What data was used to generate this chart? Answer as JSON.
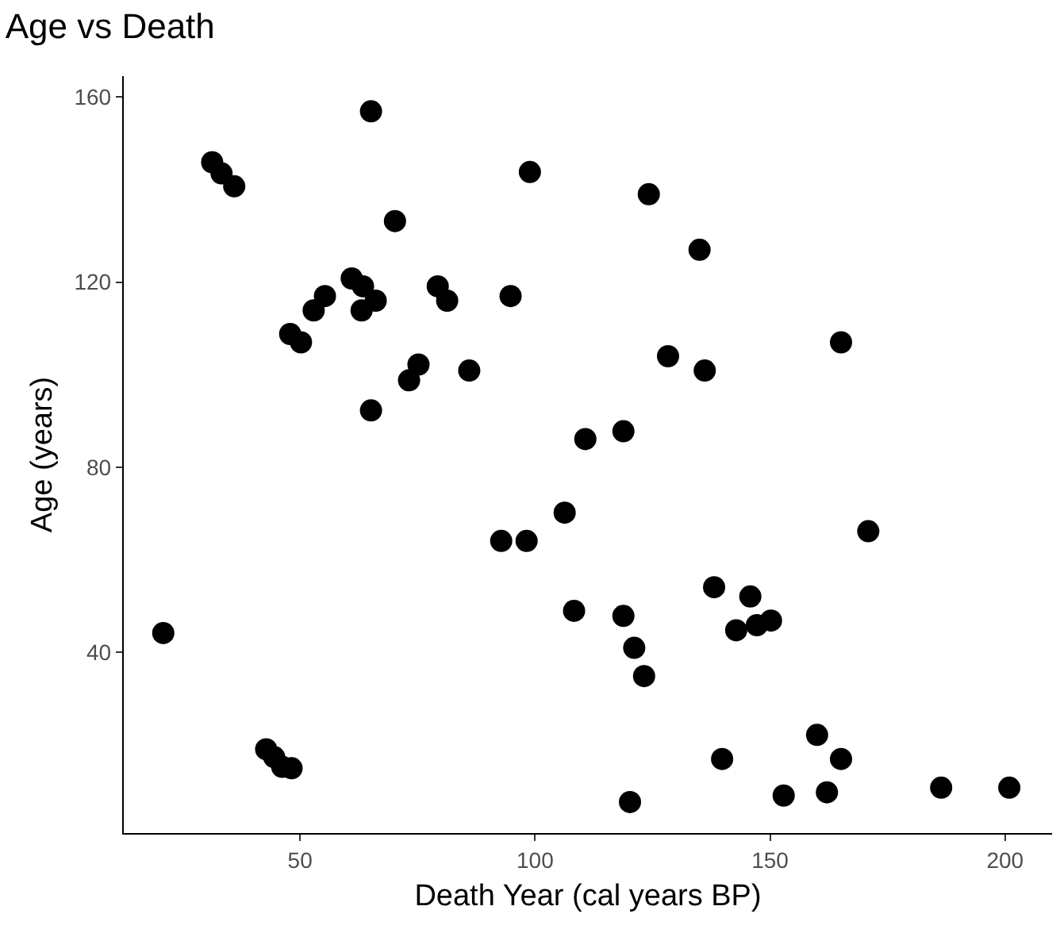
{
  "chart_data": {
    "type": "scatter",
    "title": "Age vs Death",
    "xlabel": "Death Year (cal years BP)",
    "ylabel": "Age (years)",
    "x": [
      20.9,
      31.3,
      33.3,
      36.0,
      65.1,
      98.9,
      70.2,
      61.0,
      63.4,
      66.1,
      63.1,
      55.3,
      52.9,
      47.9,
      50.2,
      79.3,
      81.3,
      94.8,
      75.2,
      73.2,
      86.0,
      65.1,
      124.2,
      135.0,
      165.1,
      128.3,
      136.1,
      110.7,
      118.8,
      42.8,
      44.5,
      46.2,
      48.2,
      92.8,
      98.2,
      106.3,
      108.3,
      170.9,
      138.1,
      145.8,
      142.8,
      147.2,
      150.2,
      118.8,
      121.1,
      123.2,
      160.0,
      165.1,
      139.8,
      162.1,
      152.9,
      120.2,
      186.4,
      200.9
    ],
    "values": [
      44.2,
      145.9,
      143.5,
      140.7,
      156.9,
      143.8,
      133.2,
      120.8,
      119.1,
      116.0,
      113.9,
      117.0,
      113.9,
      108.8,
      107.0,
      119.1,
      116.0,
      117.0,
      102.2,
      98.8,
      100.9,
      92.3,
      139.0,
      127.0,
      107.0,
      104.0,
      100.9,
      86.1,
      87.8,
      19.1,
      17.4,
      15.3,
      15.0,
      64.1,
      64.1,
      70.2,
      49.0,
      66.2,
      54.1,
      52.1,
      44.8,
      45.9,
      46.9,
      47.9,
      41.0,
      34.9,
      22.2,
      17.0,
      17.0,
      9.8,
      9.1,
      7.7,
      10.8,
      10.8
    ],
    "color": "#000000",
    "marker": "circle",
    "xlim": [
      12.5,
      210
    ],
    "xticks": [
      50,
      100,
      150,
      200
    ],
    "ylim": [
      1,
      164.5
    ],
    "yticks": [
      40,
      80,
      120,
      160
    ],
    "grid": false,
    "legend": false
  }
}
